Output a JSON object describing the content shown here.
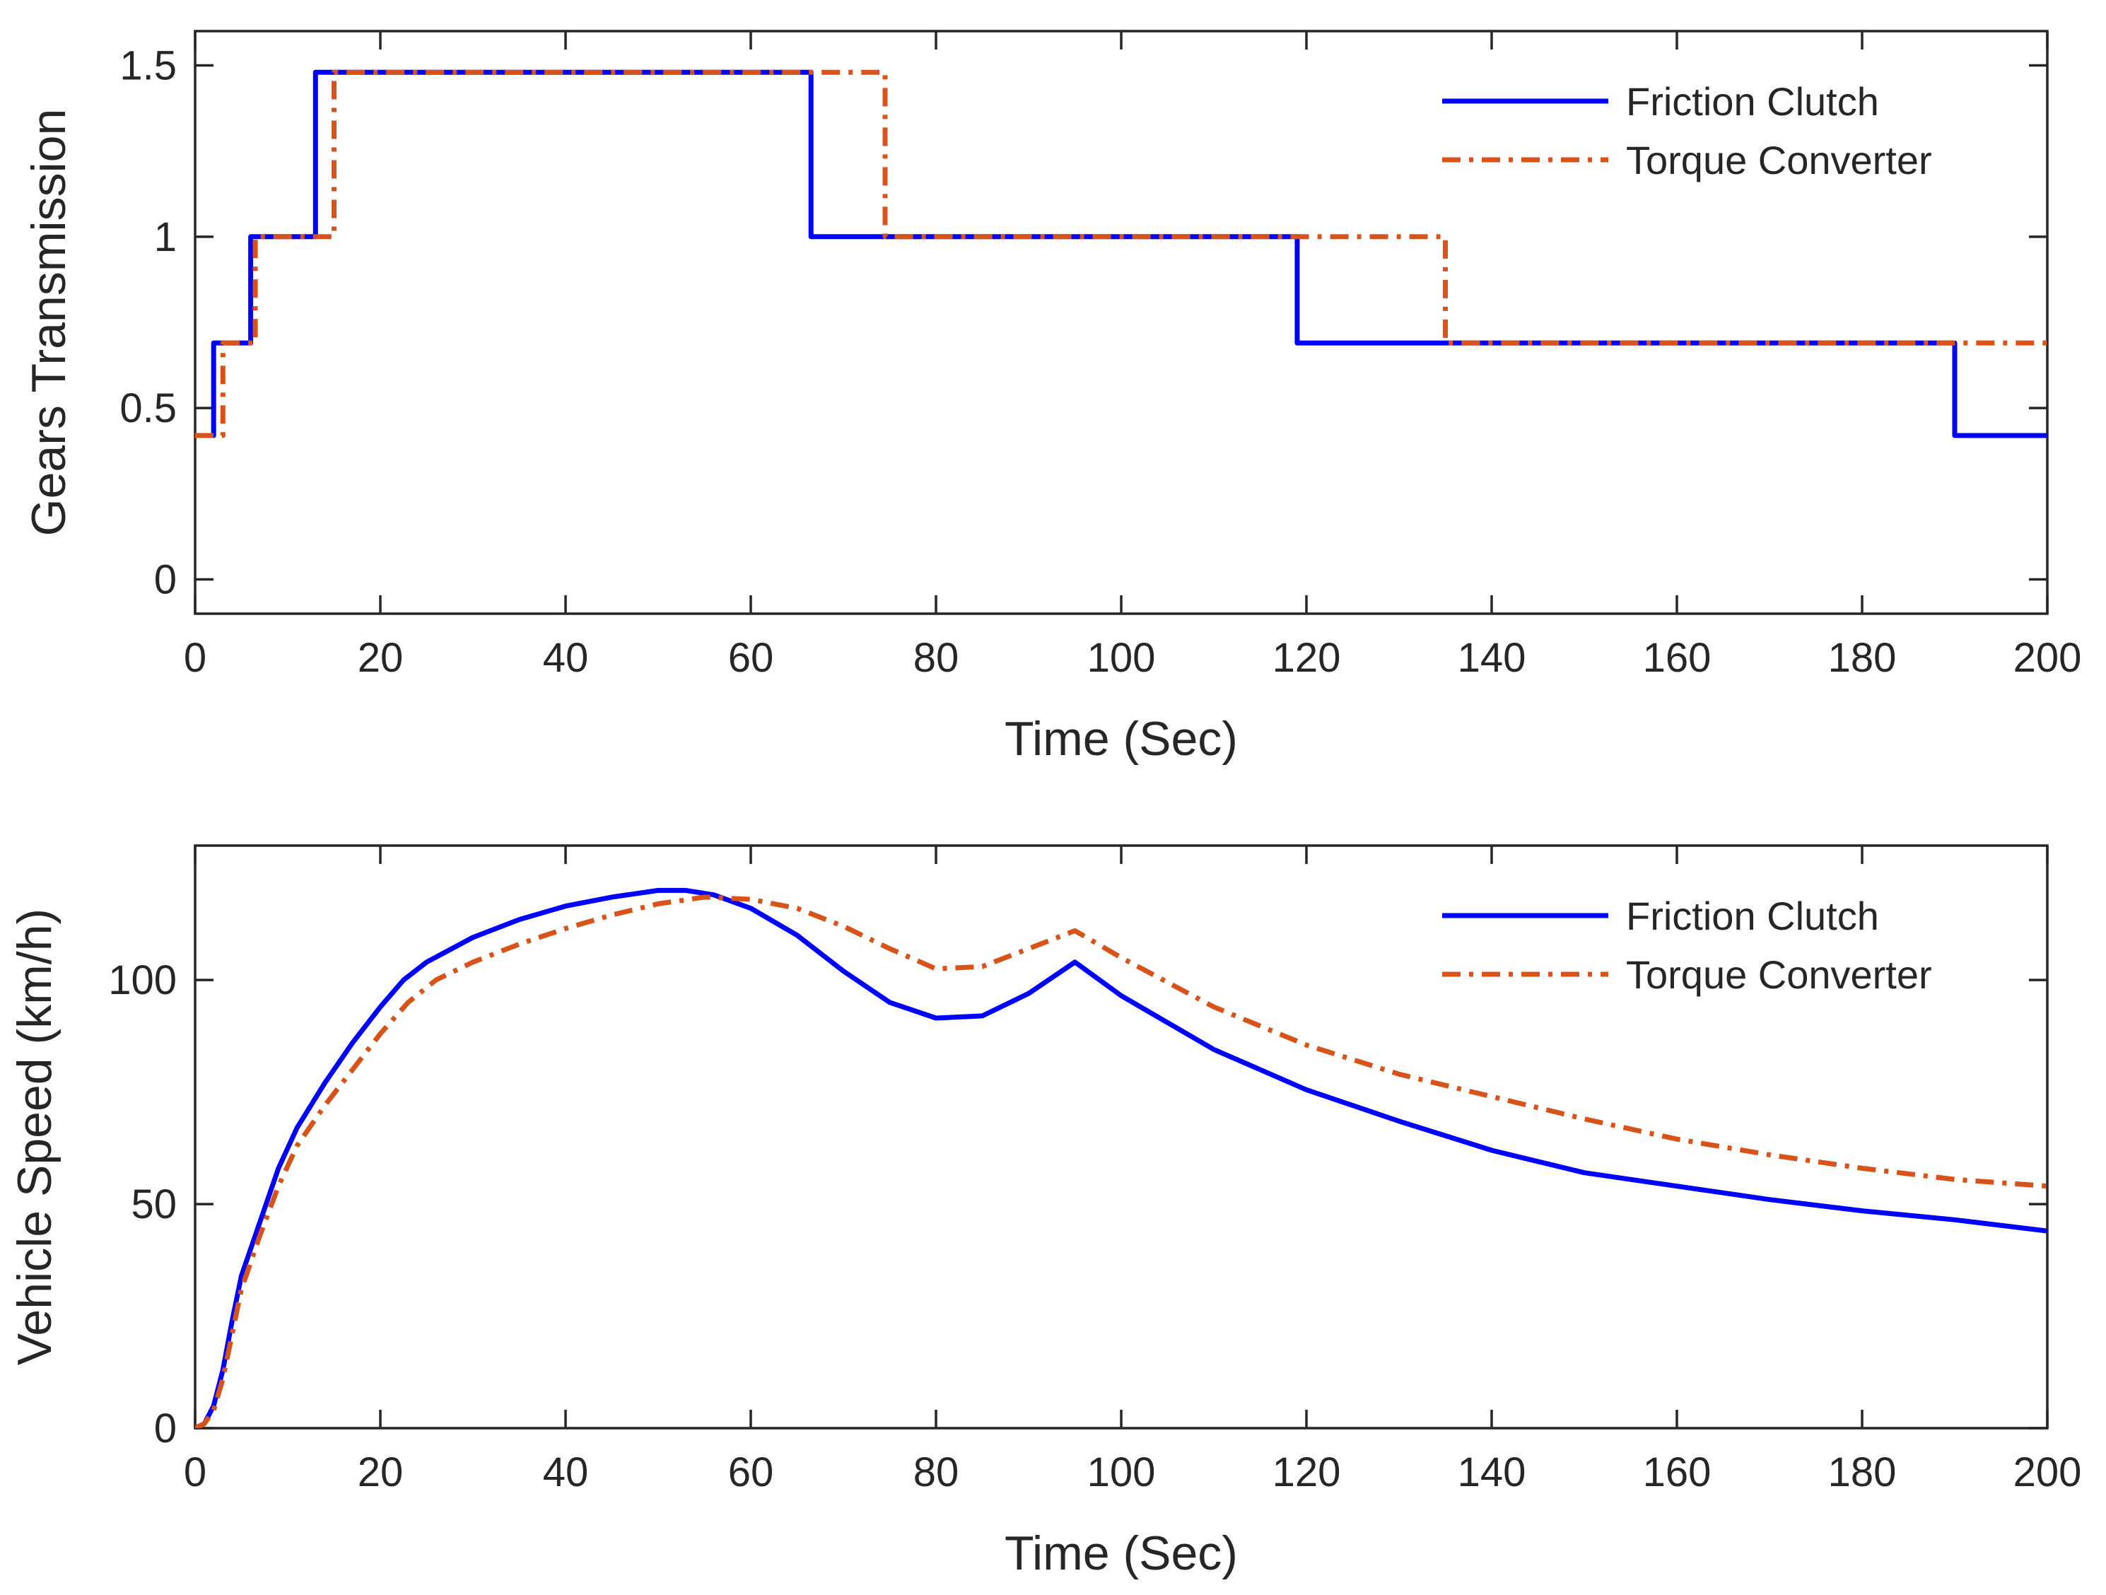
{
  "colors": {
    "friction": "#0000ff",
    "torque": "#d95319",
    "axis": "#262626"
  },
  "chart_data": [
    {
      "type": "line",
      "title": "",
      "xlabel": "Time (Sec)",
      "ylabel": "Gears Transmission",
      "xlim": [
        0,
        200
      ],
      "ylim": [
        -0.1,
        1.6
      ],
      "xticks": [
        0,
        20,
        40,
        60,
        80,
        100,
        120,
        140,
        160,
        180,
        200
      ],
      "yticks": [
        0,
        0.5,
        1,
        1.5
      ],
      "ytick_labels": [
        "0",
        "0.5",
        "1",
        "1.5"
      ],
      "legend_position": "top-right",
      "step": true,
      "series": [
        {
          "name": "Friction Clutch",
          "style": "solid",
          "x": [
            0,
            2,
            2,
            6,
            6,
            13,
            13,
            66.5,
            66.5,
            119,
            119,
            190,
            190,
            200
          ],
          "y": [
            0.42,
            0.42,
            0.69,
            0.69,
            1.0,
            1.0,
            1.48,
            1.48,
            1.0,
            1.0,
            0.69,
            0.69,
            0.42,
            0.42
          ]
        },
        {
          "name": "Torque Converter",
          "style": "dashdot",
          "x": [
            0,
            3,
            3,
            6.5,
            6.5,
            15,
            15,
            74.5,
            74.5,
            135,
            135,
            200
          ],
          "y": [
            0.42,
            0.42,
            0.69,
            0.69,
            1.0,
            1.0,
            1.48,
            1.48,
            1.0,
            1.0,
            0.69,
            0.69
          ]
        }
      ]
    },
    {
      "type": "line",
      "title": "",
      "xlabel": "Time (Sec)",
      "ylabel": "Vehicle Speed (km/h)",
      "xlim": [
        0,
        200
      ],
      "ylim": [
        0,
        130
      ],
      "xticks": [
        0,
        20,
        40,
        60,
        80,
        100,
        120,
        140,
        160,
        180,
        200
      ],
      "yticks": [
        0,
        50,
        100
      ],
      "ytick_labels": [
        "0",
        "50",
        "100"
      ],
      "legend_position": "top-right",
      "step": false,
      "series": [
        {
          "name": "Friction Clutch",
          "style": "solid",
          "x": [
            0,
            1,
            2,
            3,
            4,
            5,
            7,
            9,
            11,
            14,
            17,
            20,
            22.5,
            25,
            30,
            35,
            40,
            45,
            50,
            53,
            56,
            60,
            65,
            70,
            75,
            80,
            85,
            90,
            95,
            100,
            110,
            120,
            130,
            140,
            150,
            160,
            170,
            180,
            190,
            200
          ],
          "y": [
            0,
            1,
            5,
            13,
            24,
            34,
            46,
            58,
            67,
            77,
            86,
            94,
            100,
            104,
            109.5,
            113.5,
            116.5,
            118.5,
            120,
            120,
            119,
            116,
            110,
            102,
            95,
            91.5,
            92,
            97,
            104,
            96.5,
            84.5,
            75.5,
            68.5,
            62,
            57,
            54,
            51,
            48.5,
            46.5,
            44
          ]
        },
        {
          "name": "Torque Converter",
          "style": "dashdot",
          "x": [
            0,
            1,
            2,
            3,
            4,
            5,
            7,
            9,
            11,
            14,
            17,
            20,
            23,
            26,
            30,
            35,
            40,
            45,
            50,
            55,
            60,
            65,
            70,
            75,
            80,
            85,
            90,
            95,
            100,
            110,
            120,
            130,
            140,
            150,
            160,
            170,
            180,
            190,
            200
          ],
          "y": [
            0,
            1,
            4,
            11,
            21,
            31,
            43,
            54,
            63,
            72,
            80,
            88,
            95,
            100,
            104,
            108,
            111.5,
            114.5,
            117,
            118.5,
            118,
            116,
            112,
            107,
            102.5,
            103,
            107,
            111,
            105,
            94,
            85.5,
            79,
            74,
            69,
            64.5,
            61,
            58,
            55.5,
            54
          ]
        }
      ]
    }
  ]
}
